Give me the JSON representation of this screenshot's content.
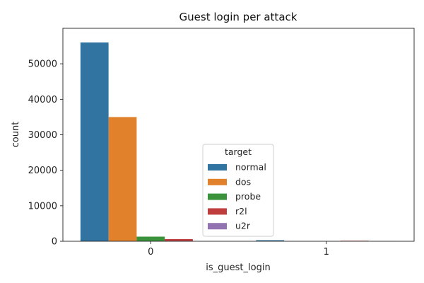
{
  "chart_data": {
    "type": "bar",
    "title": "Guest login per attack",
    "xlabel": "is_guest_login",
    "ylabel": "count",
    "categories": [
      "0",
      "1"
    ],
    "ylim": [
      0,
      60000
    ],
    "yticks": [
      0,
      10000,
      20000,
      30000,
      40000,
      50000
    ],
    "grid": false,
    "legend": {
      "title": "target",
      "placement": "center-bottom"
    },
    "series": [
      {
        "name": "normal",
        "color": "#3274a1",
        "values": [
          56000,
          300
        ]
      },
      {
        "name": "dos",
        "color": "#e1812c",
        "values": [
          35000,
          10
        ]
      },
      {
        "name": "probe",
        "color": "#3a923a",
        "values": [
          1300,
          10
        ]
      },
      {
        "name": "r2l",
        "color": "#c03d3e",
        "values": [
          600,
          150
        ]
      },
      {
        "name": "u2r",
        "color": "#9372b2",
        "values": [
          30,
          10
        ]
      }
    ]
  }
}
